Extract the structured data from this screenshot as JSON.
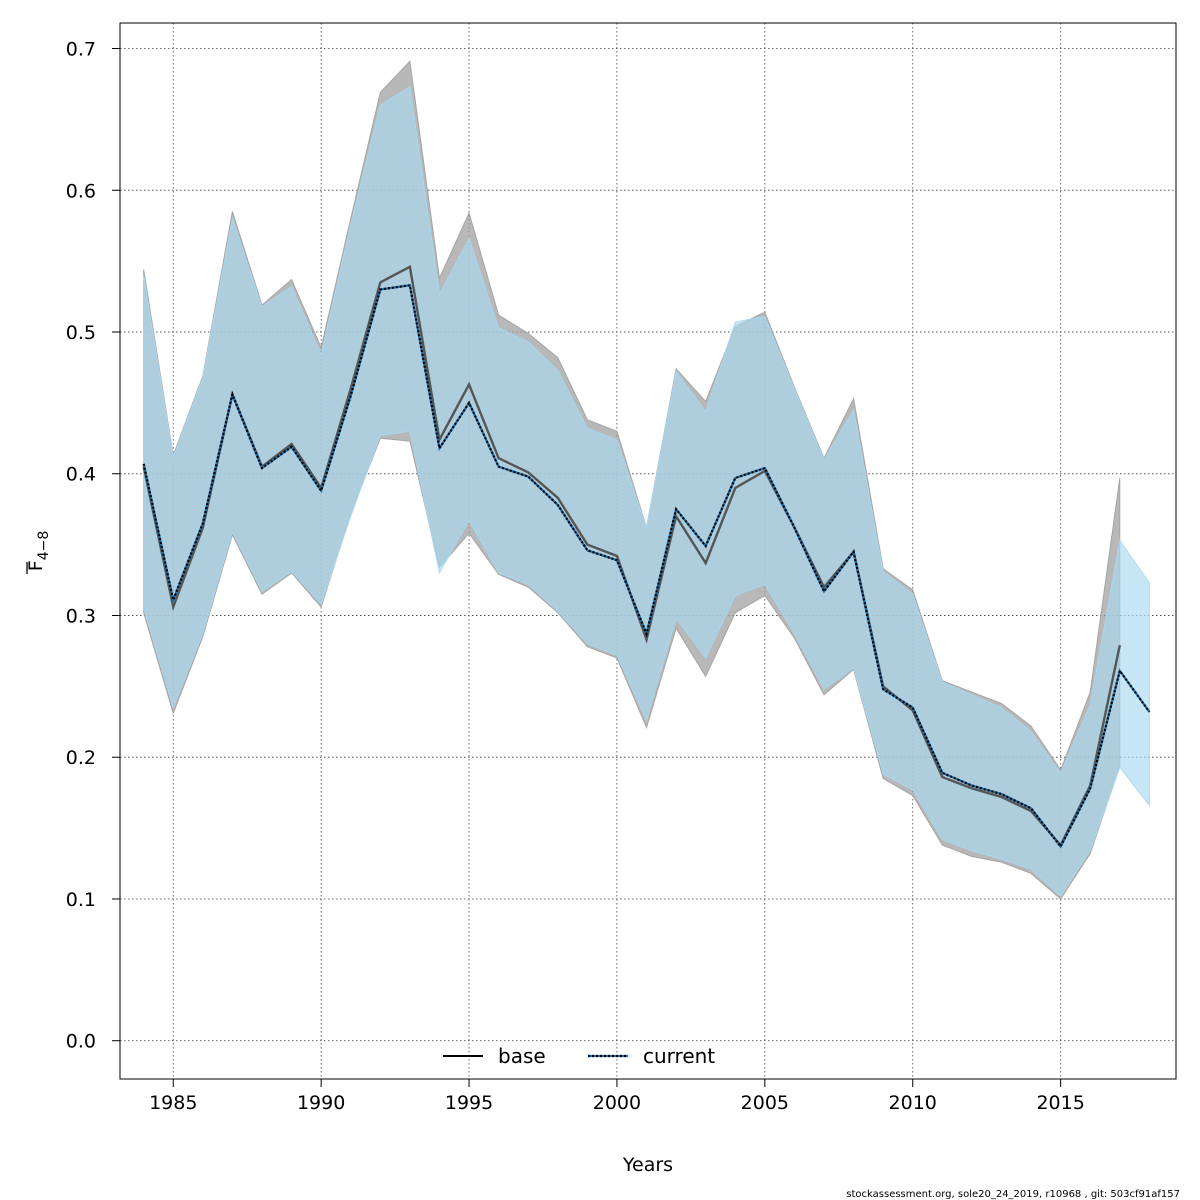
{
  "chart_data": {
    "type": "line",
    "xlabel": "Years",
    "ylabel_base": "F",
    "ylabel_sub": "4−8",
    "xlim": [
      1983.2,
      2018.9
    ],
    "ylim": [
      -0.027,
      0.718
    ],
    "xticks": [
      1985,
      1990,
      1995,
      2000,
      2005,
      2010,
      2015
    ],
    "xtick_labels": [
      "1985",
      "1990",
      "1995",
      "2000",
      "2005",
      "2010",
      "2015"
    ],
    "yticks": [
      0.0,
      0.1,
      0.2,
      0.3,
      0.4,
      0.5,
      0.6,
      0.7
    ],
    "ytick_labels": [
      "0.0",
      "0.1",
      "0.2",
      "0.3",
      "0.4",
      "0.5",
      "0.6",
      "0.7"
    ],
    "grid": true,
    "legend_position": "bottom-center",
    "series": [
      {
        "name": "base",
        "line_style": "solid",
        "line_color": "#555555",
        "band_color": "#a0a0a0",
        "x": [
          1984,
          1985,
          1986,
          1987,
          1988,
          1989,
          1990,
          1991,
          1992,
          1993,
          1994,
          1995,
          1996,
          1997,
          1998,
          1999,
          2000,
          2001,
          2002,
          2003,
          2004,
          2005,
          2006,
          2007,
          2008,
          2009,
          2010,
          2011,
          2012,
          2013,
          2014,
          2015,
          2016,
          2017
        ],
        "values": [
          0.405,
          0.306,
          0.362,
          0.456,
          0.405,
          0.421,
          0.39,
          0.46,
          0.535,
          0.546,
          0.424,
          0.463,
          0.411,
          0.401,
          0.383,
          0.35,
          0.342,
          0.283,
          0.37,
          0.337,
          0.39,
          0.402,
          0.362,
          0.32,
          0.345,
          0.25,
          0.233,
          0.186,
          0.178,
          0.172,
          0.162,
          0.138,
          0.18,
          0.279
        ],
        "lower": [
          0.302,
          0.231,
          0.285,
          0.357,
          0.315,
          0.33,
          0.306,
          0.372,
          0.425,
          0.423,
          0.334,
          0.358,
          0.329,
          0.32,
          0.302,
          0.278,
          0.27,
          0.221,
          0.291,
          0.257,
          0.302,
          0.314,
          0.284,
          0.244,
          0.262,
          0.185,
          0.173,
          0.138,
          0.13,
          0.126,
          0.118,
          0.1,
          0.132,
          0.194
        ],
        "upper": [
          0.544,
          0.413,
          0.469,
          0.585,
          0.519,
          0.537,
          0.489,
          0.58,
          0.669,
          0.691,
          0.538,
          0.584,
          0.512,
          0.499,
          0.482,
          0.438,
          0.43,
          0.362,
          0.474,
          0.451,
          0.504,
          0.514,
          0.461,
          0.411,
          0.453,
          0.333,
          0.318,
          0.254,
          0.246,
          0.238,
          0.222,
          0.191,
          0.246,
          0.397
        ]
      },
      {
        "name": "current",
        "line_style": "dotted",
        "line_color": "#1b6fa8",
        "band_color": "#a9d8f1",
        "x": [
          1984,
          1985,
          1986,
          1987,
          1988,
          1989,
          1990,
          1991,
          1992,
          1993,
          1994,
          1995,
          1996,
          1997,
          1998,
          1999,
          2000,
          2001,
          2002,
          2003,
          2004,
          2005,
          2006,
          2007,
          2008,
          2009,
          2010,
          2011,
          2012,
          2013,
          2014,
          2015,
          2016,
          2017,
          2018
        ],
        "values": [
          0.407,
          0.311,
          0.365,
          0.456,
          0.404,
          0.419,
          0.388,
          0.455,
          0.53,
          0.533,
          0.418,
          0.45,
          0.405,
          0.398,
          0.378,
          0.346,
          0.339,
          0.287,
          0.375,
          0.349,
          0.397,
          0.404,
          0.362,
          0.317,
          0.345,
          0.248,
          0.235,
          0.189,
          0.18,
          0.174,
          0.164,
          0.137,
          0.178,
          0.261,
          0.232
        ],
        "lower": [
          0.305,
          0.235,
          0.287,
          0.359,
          0.317,
          0.331,
          0.308,
          0.37,
          0.427,
          0.43,
          0.33,
          0.367,
          0.33,
          0.322,
          0.303,
          0.28,
          0.272,
          0.226,
          0.298,
          0.27,
          0.314,
          0.322,
          0.287,
          0.248,
          0.263,
          0.188,
          0.177,
          0.142,
          0.134,
          0.128,
          0.121,
          0.102,
          0.134,
          0.193,
          0.166
        ],
        "upper": [
          0.54,
          0.412,
          0.468,
          0.58,
          0.518,
          0.532,
          0.484,
          0.576,
          0.66,
          0.673,
          0.527,
          0.566,
          0.503,
          0.493,
          0.473,
          0.432,
          0.424,
          0.362,
          0.472,
          0.444,
          0.507,
          0.511,
          0.46,
          0.41,
          0.445,
          0.331,
          0.315,
          0.253,
          0.244,
          0.235,
          0.218,
          0.189,
          0.237,
          0.353,
          0.323
        ]
      }
    ]
  },
  "legend": {
    "base_label": "base",
    "current_label": "current"
  },
  "footer_text": "stockassessment.org, sole20_24_2019, r10968 , git: 503cf91af157"
}
